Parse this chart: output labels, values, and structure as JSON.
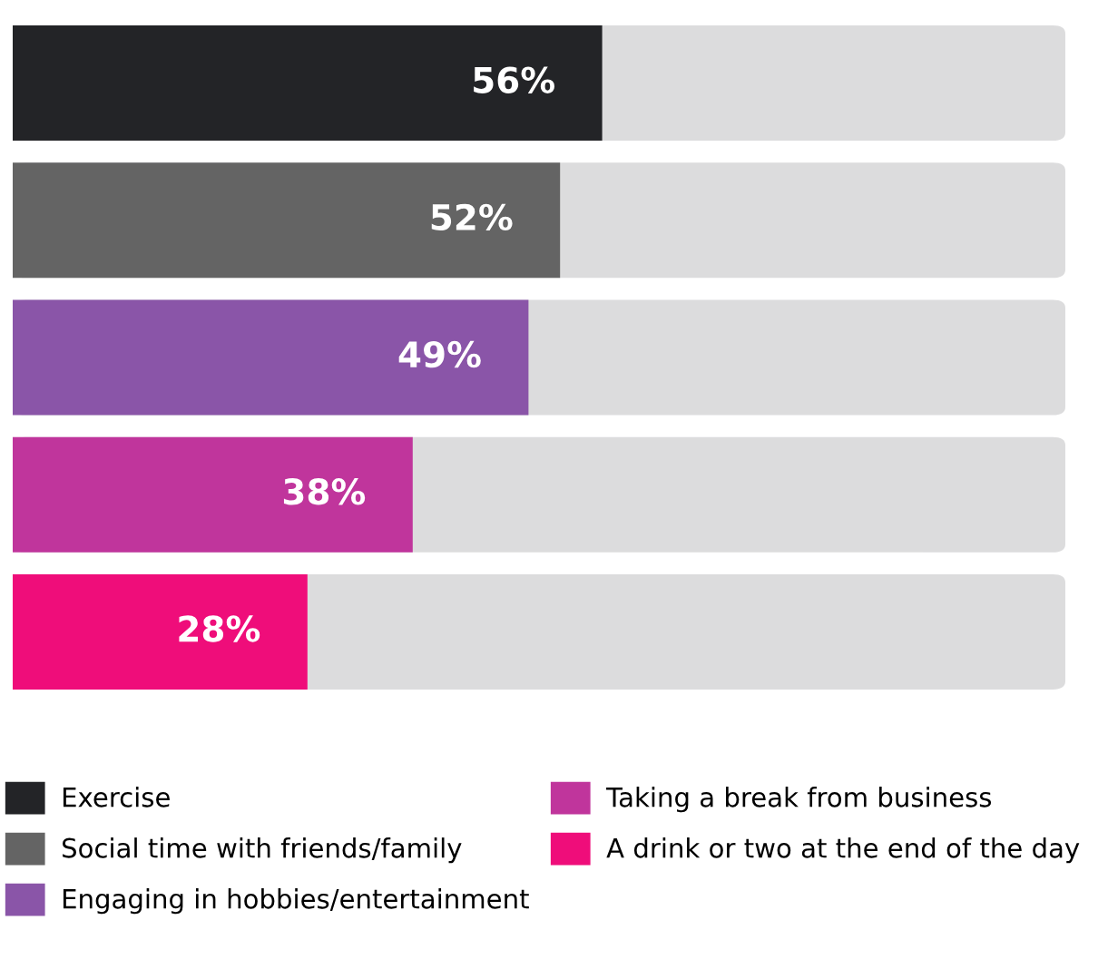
{
  "chart_data": {
    "type": "bar",
    "orientation": "horizontal",
    "stacked": true,
    "categories": [
      null,
      null,
      null,
      null,
      null
    ],
    "series": [
      {
        "name": "Exercise",
        "color": "#232427",
        "values": [
          56,
          0,
          0,
          0,
          0
        ],
        "value_labels": [
          "56%",
          null,
          null,
          null,
          null
        ]
      },
      {
        "name": "Social time with friends/family",
        "color": "#646464",
        "values": [
          0,
          52,
          0,
          0,
          0
        ],
        "value_labels": [
          null,
          "52%",
          null,
          null,
          null
        ]
      },
      {
        "name": "Engaging in hobbies/entertainment",
        "color": "#8a55a8",
        "values": [
          0,
          0,
          49,
          0,
          0
        ],
        "value_labels": [
          null,
          null,
          "49%",
          null,
          null
        ]
      },
      {
        "name": "Taking a break from business",
        "color": "#c0359c",
        "values": [
          0,
          0,
          0,
          38,
          0
        ],
        "value_labels": [
          null,
          null,
          null,
          "38%",
          null
        ]
      },
      {
        "name": "A drink or two at the end of the day",
        "color": "#ef0d7a",
        "values": [
          0,
          0,
          0,
          0,
          28
        ],
        "value_labels": [
          null,
          null,
          null,
          null,
          "28%"
        ]
      }
    ],
    "xlim": [
      0,
      100
    ],
    "tick_labels": false,
    "grid": false,
    "legend": "bottom"
  }
}
